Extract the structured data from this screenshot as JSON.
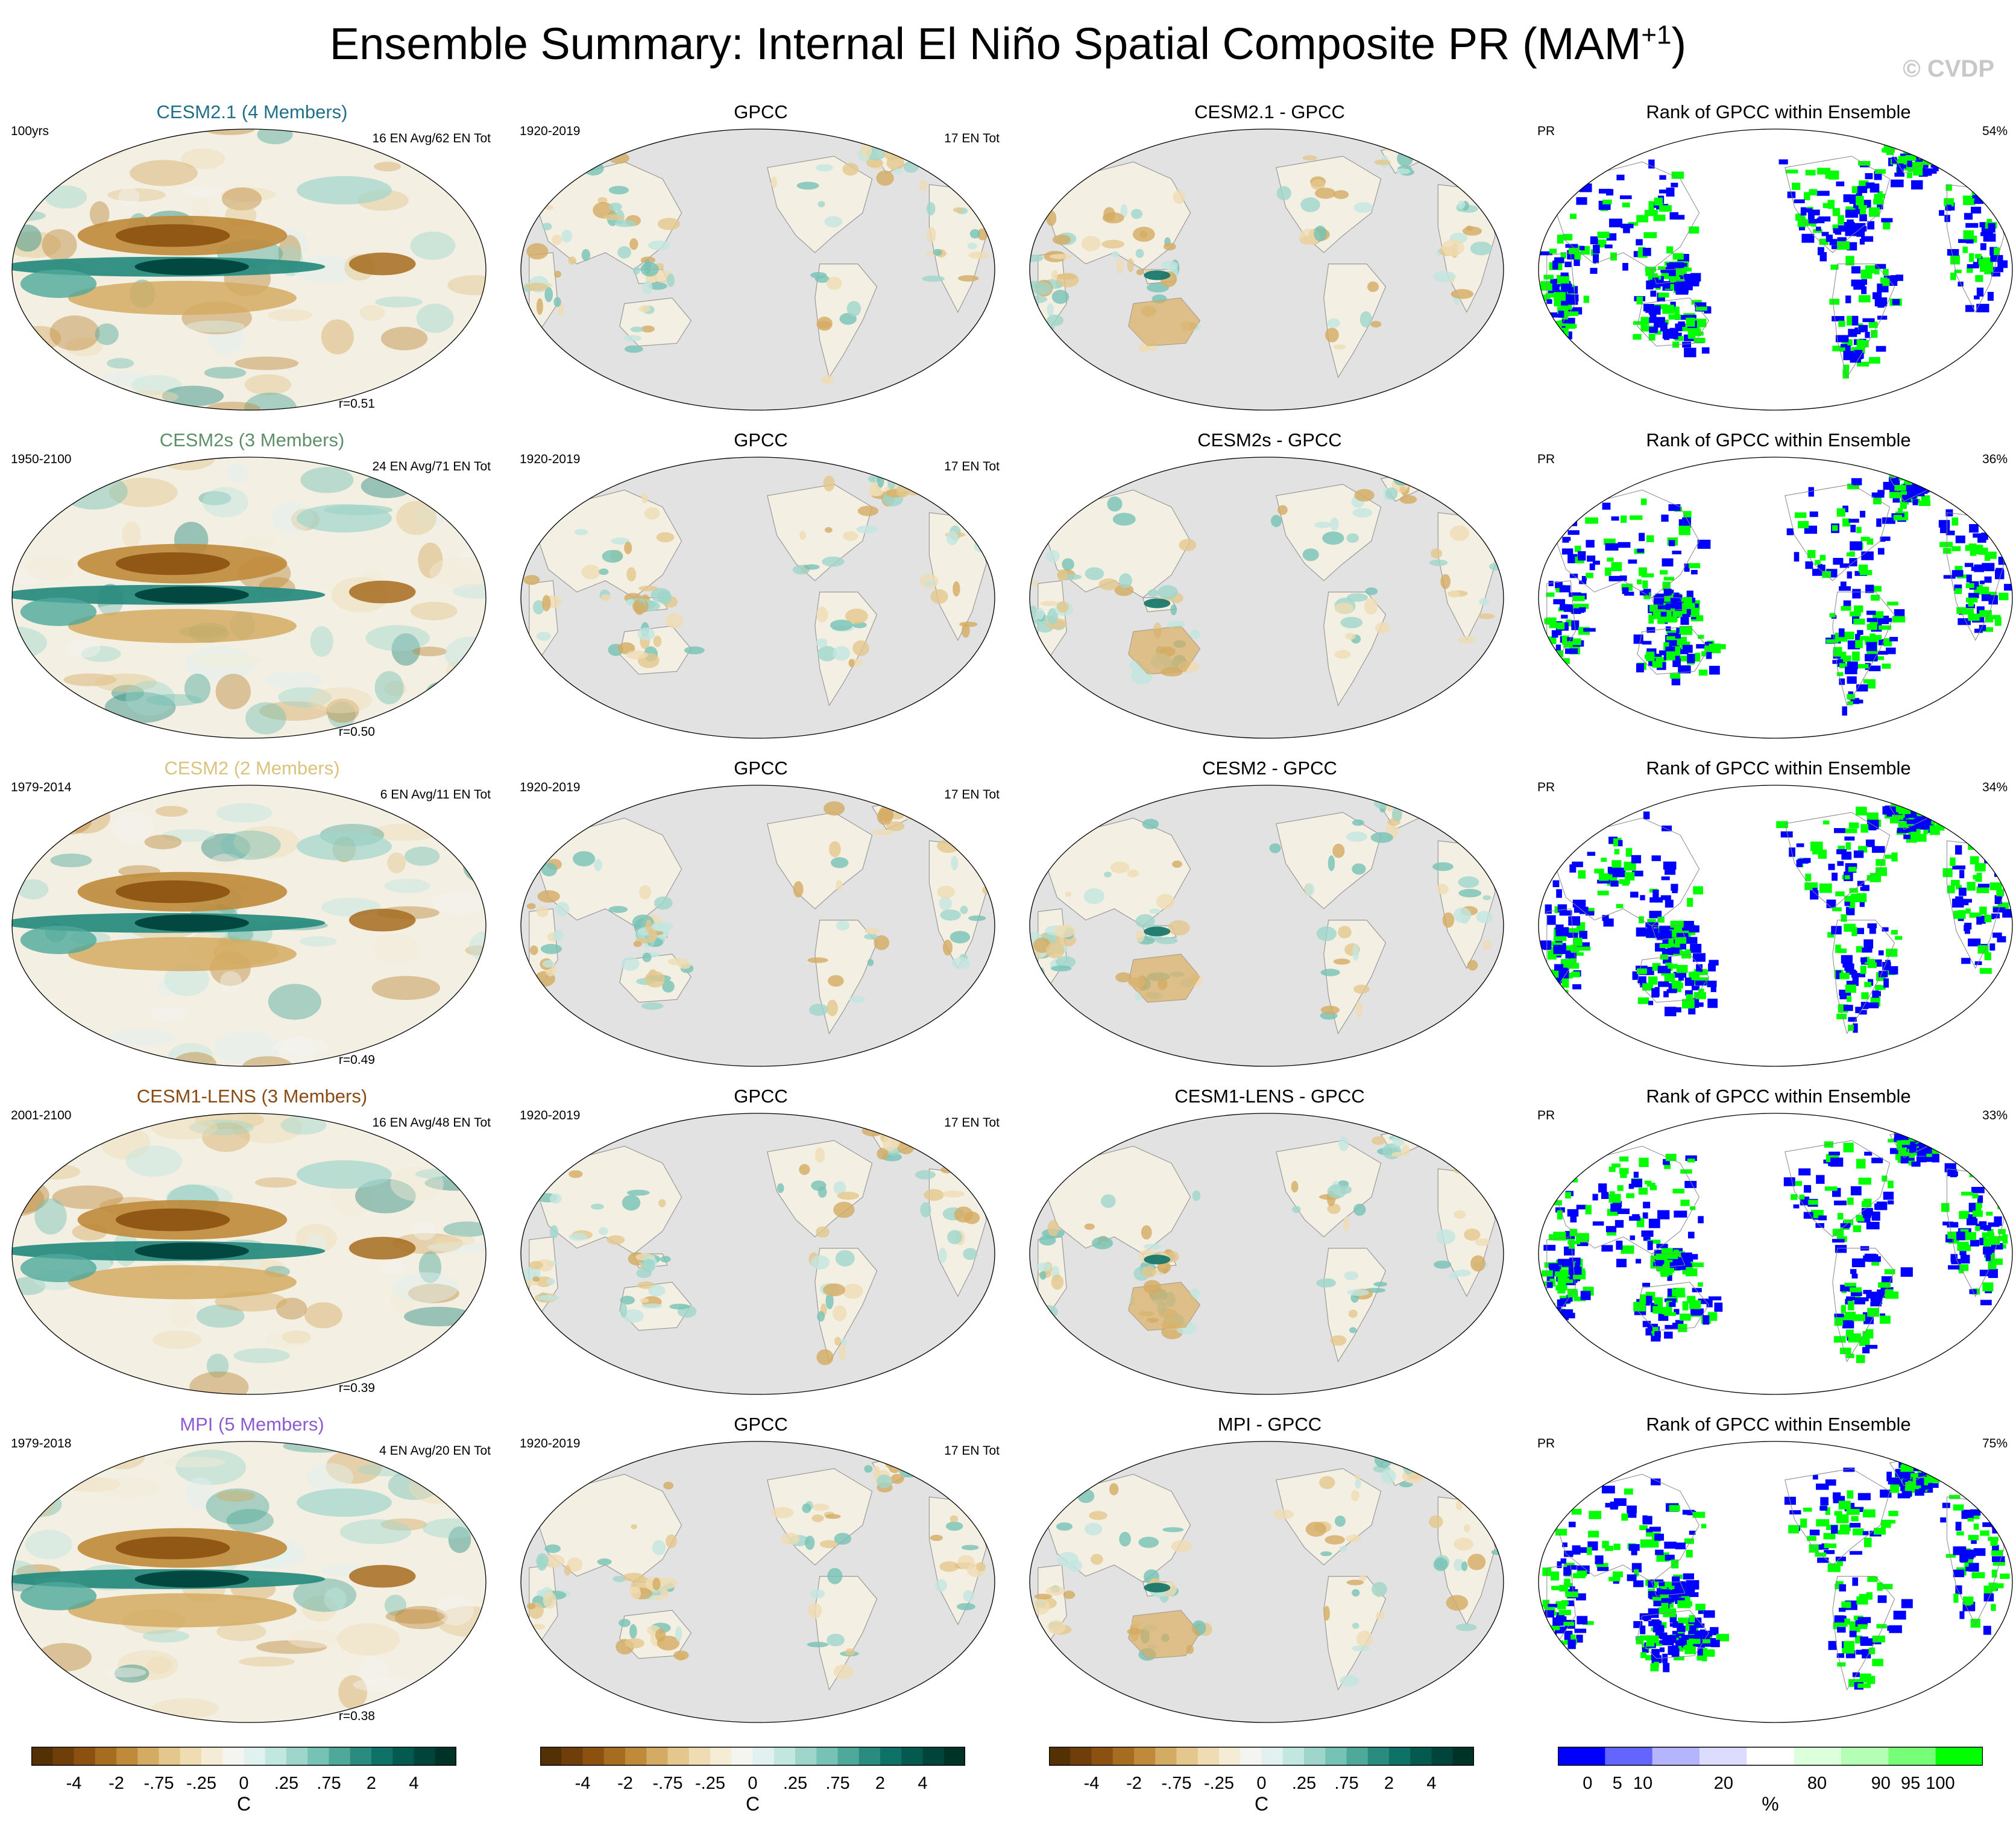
{
  "title": {
    "main": "Ensemble Summary: Internal El Niño Spatial Composite PR (MAM",
    "superscript": "+1",
    "close": ")"
  },
  "credit": "© CVDP",
  "colors": {
    "ocean_gray": "#e2e2e2",
    "rank_blue": "#0000ff",
    "rank_green": "#00ff00",
    "title_cesm21": "#1f6f86",
    "title_cesm2s": "#5f8f6a",
    "title_cesm2": "#d9c37e",
    "title_cesm1lens": "#8a4a14",
    "title_mpi": "#8a5cd0"
  },
  "rows": [
    {
      "model": {
        "title": "CESM2.1 (4 Members)",
        "years": "100yrs",
        "counts": "16 EN Avg/62 EN Tot",
        "r": "r=0.51",
        "title_color": "#1f6f86"
      },
      "obs": {
        "title": "GPCC",
        "years": "1920-2019",
        "counts": "17 EN Tot"
      },
      "diff": {
        "title": "CESM2.1 - GPCC"
      },
      "rank": {
        "title": "Rank of GPCC within Ensemble",
        "var": "PR",
        "pct": "54%"
      }
    },
    {
      "model": {
        "title": "CESM2s (3 Members)",
        "years": "1950-2100",
        "counts": "24 EN Avg/71 EN Tot",
        "r": "r=0.50",
        "title_color": "#5f8f6a"
      },
      "obs": {
        "title": "GPCC",
        "years": "1920-2019",
        "counts": "17 EN Tot"
      },
      "diff": {
        "title": "CESM2s - GPCC"
      },
      "rank": {
        "title": "Rank of GPCC within Ensemble",
        "var": "PR",
        "pct": "36%"
      }
    },
    {
      "model": {
        "title": "CESM2 (2 Members)",
        "years": "1979-2014",
        "counts": "6 EN Avg/11 EN Tot",
        "r": "r=0.49",
        "title_color": "#d9c37e"
      },
      "obs": {
        "title": "GPCC",
        "years": "1920-2019",
        "counts": "17 EN Tot"
      },
      "diff": {
        "title": "CESM2 - GPCC"
      },
      "rank": {
        "title": "Rank of GPCC within Ensemble",
        "var": "PR",
        "pct": "34%"
      }
    },
    {
      "model": {
        "title": "CESM1-LENS (3 Members)",
        "years": "2001-2100",
        "counts": "16 EN Avg/48 EN Tot",
        "r": "r=0.39",
        "title_color": "#8a4a14"
      },
      "obs": {
        "title": "GPCC",
        "years": "1920-2019",
        "counts": "17 EN Tot"
      },
      "diff": {
        "title": "CESM1-LENS - GPCC"
      },
      "rank": {
        "title": "Rank of GPCC within Ensemble",
        "var": "PR",
        "pct": "33%"
      }
    },
    {
      "model": {
        "title": "MPI (5 Members)",
        "years": "1979-2018",
        "counts": "4 EN Avg/20 EN Tot",
        "r": "r=0.38",
        "title_color": "#8a5cd0"
      },
      "obs": {
        "title": "GPCC",
        "years": "1920-2019",
        "counts": "17 EN Tot"
      },
      "diff": {
        "title": "MPI - GPCC"
      },
      "rank": {
        "title": "Rank of GPCC within Ensemble",
        "var": "PR",
        "pct": "75%"
      }
    }
  ],
  "chart_data": [
    {
      "type": "heatmap",
      "description_source": "Composite PR maps, 5 rows x 4 columns",
      "pattern_correlations": [
        0.51,
        0.5,
        0.49,
        0.39,
        0.38
      ],
      "rank_percentages": [
        54,
        36,
        34,
        33,
        75
      ],
      "colorbar_diverging": {
        "tick_labels": [
          "-4",
          "-2",
          "-.75",
          "-.25",
          "0",
          ".25",
          ".75",
          "2",
          "4"
        ],
        "unit": "C",
        "colors": [
          "#543005",
          "#6f3e0a",
          "#8c5110",
          "#a66c1f",
          "#bf8a3a",
          "#d4ab62",
          "#e3c78c",
          "#efdcb3",
          "#f5ecd6",
          "#f4f4f0",
          "#e0f1ef",
          "#c2e6e0",
          "#9fd6cb",
          "#76c2b4",
          "#4ea99a",
          "#2a8c7f",
          "#0f7267",
          "#055a50",
          "#01443c",
          "#003328"
        ]
      },
      "colorbar_rank": {
        "tick_labels": [
          "0",
          "5",
          "10",
          "20",
          "80",
          "90",
          "95",
          "100"
        ],
        "unit": "%",
        "colors": [
          "#0000ff",
          "#6464ff",
          "#b4b4ff",
          "#dcdcff",
          "#ffffff",
          "#dcffdc",
          "#b4ffb4",
          "#78ff78",
          "#00ff00"
        ]
      }
    }
  ]
}
